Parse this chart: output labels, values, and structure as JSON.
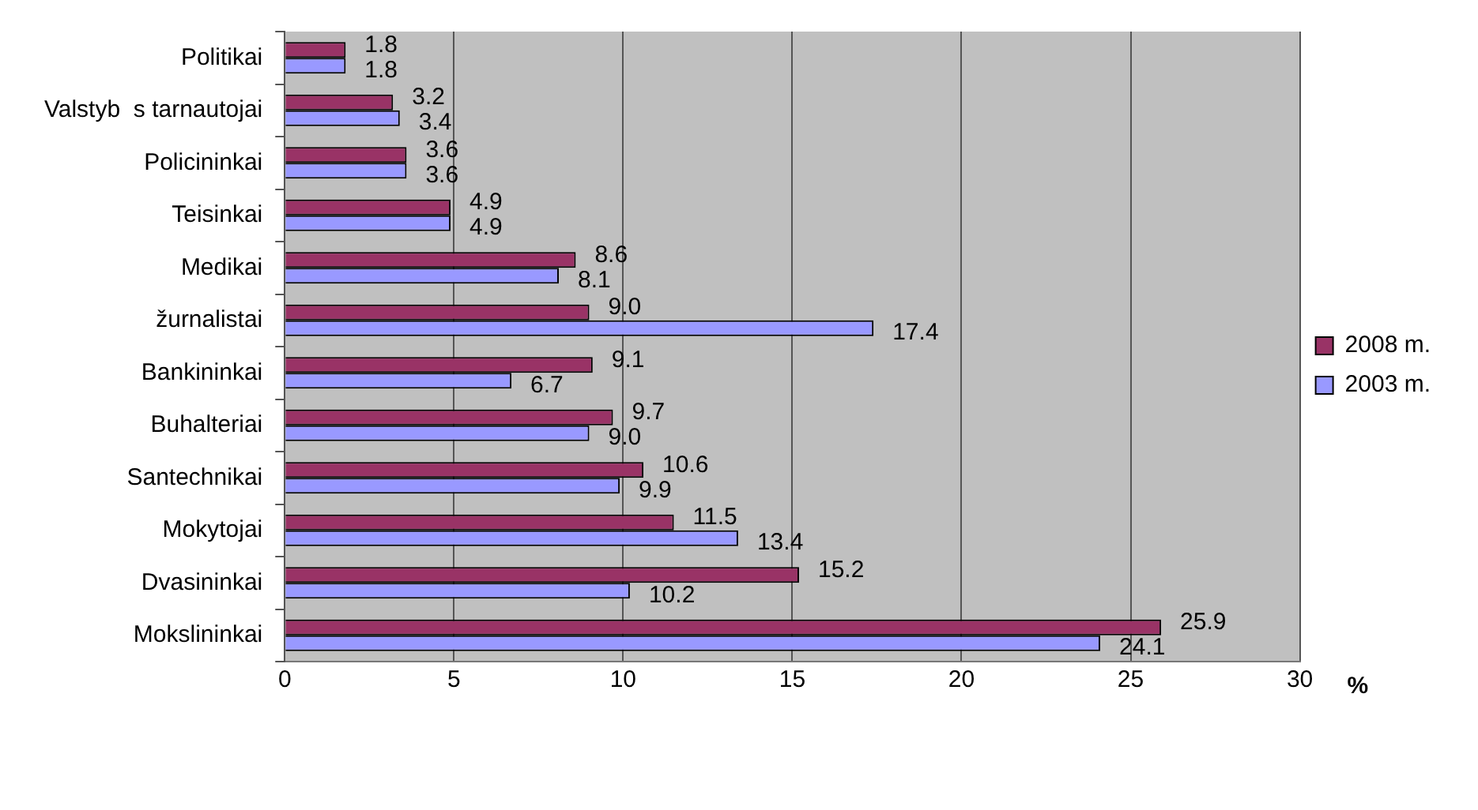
{
  "chart_data": {
    "type": "bar",
    "orientation": "horizontal",
    "xlabel": "%",
    "categories": [
      "Politikai",
      "Valstyb  s tarnautojai",
      "Policininkai",
      "Teisinkai",
      "Medikai",
      "žurnalistai",
      "Bankininkai",
      "Buhalteriai",
      "Santechnikai",
      "Mokytojai",
      "Dvasininkai",
      "Mokslininkai"
    ],
    "series": [
      {
        "name": "2008 m.",
        "color": "#993366",
        "values": [
          1.8,
          3.2,
          3.6,
          4.9,
          8.6,
          9.0,
          9.1,
          9.7,
          10.6,
          11.5,
          15.2,
          25.9
        ],
        "value_labels": [
          "1.8",
          "3.2",
          "3.6",
          "4.9",
          "8.6",
          "9.0",
          "9.1",
          "9.7",
          "10.6",
          "11.5",
          "15.2",
          "25.9"
        ]
      },
      {
        "name": "2003 m.",
        "color": "#9999ff",
        "values": [
          1.8,
          3.4,
          3.6,
          4.9,
          8.1,
          17.4,
          6.7,
          9.0,
          9.9,
          13.4,
          10.2,
          24.1
        ],
        "value_labels": [
          "1.8",
          "3.4",
          "3.6",
          "4.9",
          "8.1",
          "17.4",
          "6.7",
          "9.0",
          "9.9",
          "13.4",
          "10.2",
          "24.1"
        ]
      }
    ],
    "xlim": [
      0,
      30
    ],
    "xticks": [
      0,
      5,
      10,
      15,
      20,
      25,
      30
    ],
    "grid": "x",
    "legend": "right"
  }
}
